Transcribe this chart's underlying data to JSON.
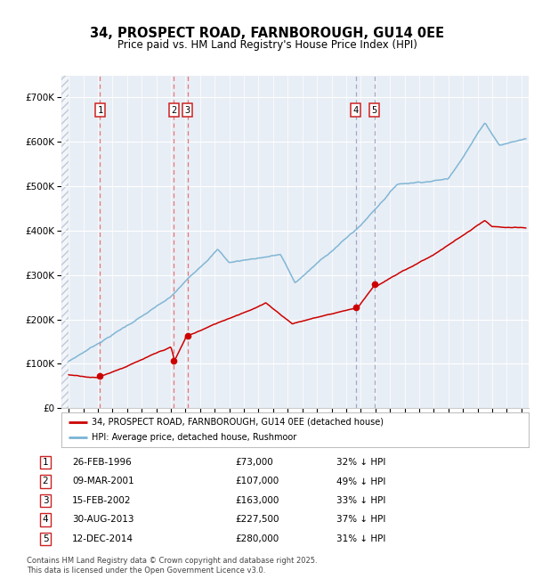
{
  "title": "34, PROSPECT ROAD, FARNBOROUGH, GU14 0EE",
  "subtitle": "Price paid vs. HM Land Registry's House Price Index (HPI)",
  "legend_red": "34, PROSPECT ROAD, FARNBOROUGH, GU14 0EE (detached house)",
  "legend_blue": "HPI: Average price, detached house, Rushmoor",
  "footnote": "Contains HM Land Registry data © Crown copyright and database right 2025.\nThis data is licensed under the Open Government Licence v3.0.",
  "transactions": [
    {
      "num": 1,
      "date": "26-FEB-1996",
      "price": 73000,
      "pct": "32%",
      "x_year": 1996.15
    },
    {
      "num": 2,
      "date": "09-MAR-2001",
      "price": 107000,
      "pct": "49%",
      "x_year": 2001.19
    },
    {
      "num": 3,
      "date": "15-FEB-2002",
      "price": 163000,
      "pct": "33%",
      "x_year": 2002.13
    },
    {
      "num": 4,
      "date": "30-AUG-2013",
      "price": 227500,
      "pct": "37%",
      "x_year": 2013.66
    },
    {
      "num": 5,
      "date": "12-DEC-2014",
      "price": 280000,
      "pct": "31%",
      "x_year": 2014.95
    }
  ],
  "red_color": "#cc0000",
  "blue_color": "#7ab3d4",
  "vline_color_red": "#e86060",
  "vline_color_blue": "#9999bb",
  "bg_color": "#e8eef5",
  "ylim": [
    0,
    750000
  ],
  "yticks": [
    0,
    100000,
    200000,
    300000,
    400000,
    500000,
    600000,
    700000
  ],
  "xlim_start": 1993.5,
  "xlim_end": 2025.5
}
